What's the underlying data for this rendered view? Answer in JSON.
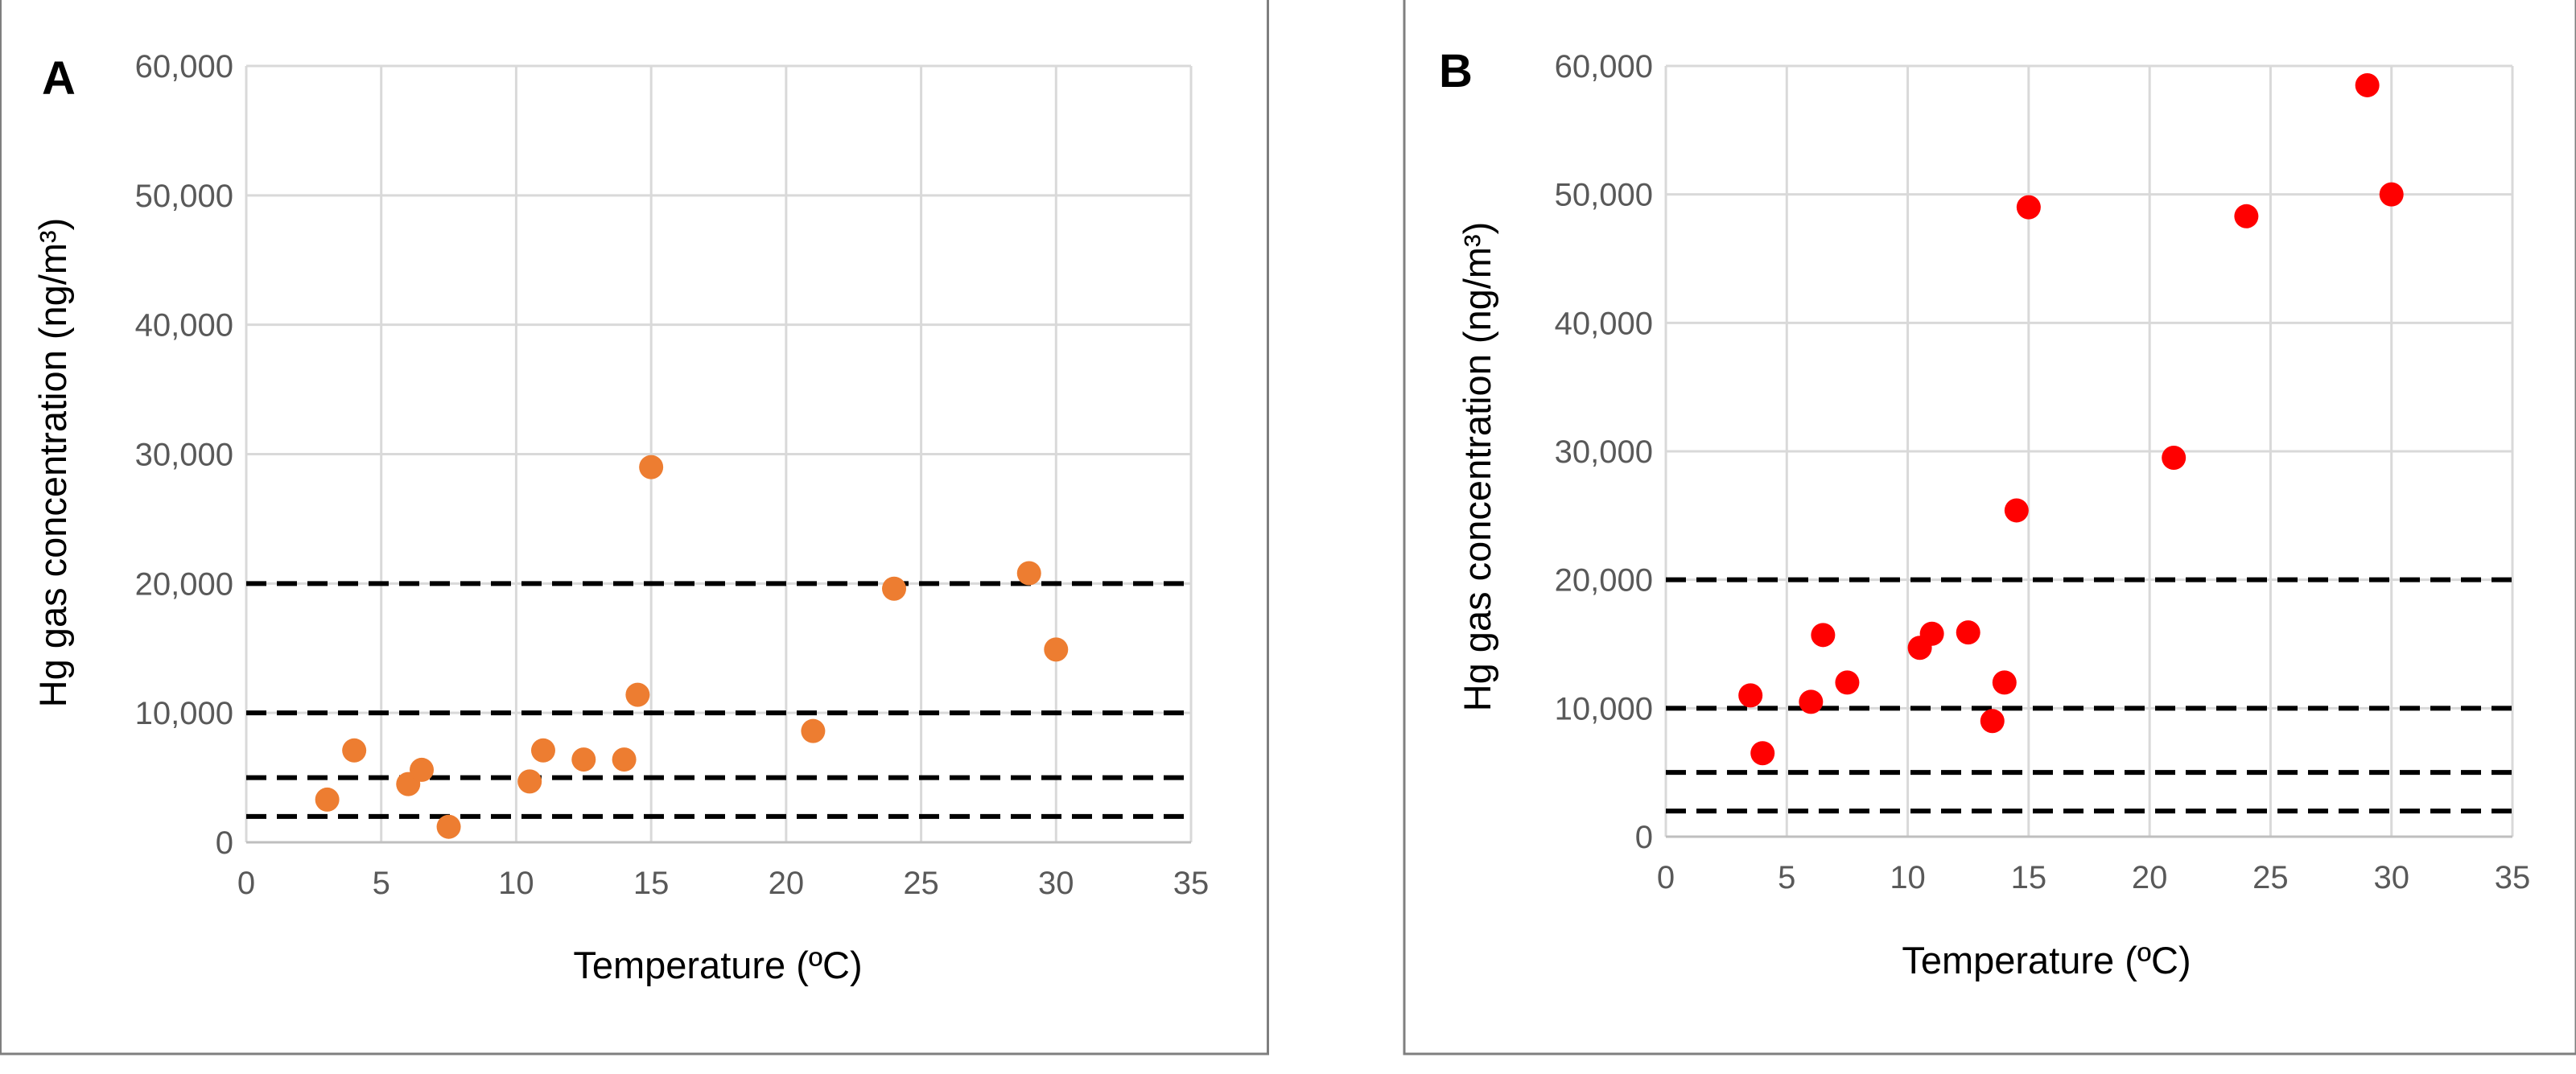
{
  "chart_data": [
    {
      "type": "scatter",
      "panel_label": "A",
      "title": "",
      "xlabel": "Temperature (ºC)",
      "ylabel": "Hg gas concentration (ng/m³)",
      "xlim": [
        0,
        35
      ],
      "ylim": [
        0,
        60000
      ],
      "x_ticks": [
        0,
        5,
        10,
        15,
        20,
        25,
        30,
        35
      ],
      "x_tick_labels": [
        "0",
        "5",
        "10",
        "15",
        "20",
        "25",
        "30",
        "35"
      ],
      "y_ticks": [
        0,
        10000,
        20000,
        30000,
        40000,
        50000,
        60000
      ],
      "y_tick_labels": [
        "0",
        "10,000",
        "20,000",
        "30,000",
        "40,000",
        "50,000",
        "60,000"
      ],
      "grid": true,
      "marker_color": "#ED7D31",
      "reference_lines": [
        2000,
        5000,
        10000,
        20000
      ],
      "series": [
        {
          "name": "A",
          "points": [
            [
              3,
              3300
            ],
            [
              4,
              7100
            ],
            [
              6,
              4500
            ],
            [
              6.5,
              5600
            ],
            [
              7.5,
              1200
            ],
            [
              10.5,
              4700
            ],
            [
              11,
              7100
            ],
            [
              12.5,
              6400
            ],
            [
              14,
              6400
            ],
            [
              14.5,
              11400
            ],
            [
              15,
              29000
            ],
            [
              21,
              8600
            ],
            [
              24,
              19600
            ],
            [
              29,
              20800
            ],
            [
              30,
              14900
            ]
          ]
        }
      ]
    },
    {
      "type": "scatter",
      "panel_label": "B",
      "title": "",
      "xlabel": "Temperature (ºC)",
      "ylabel": "Hg gas concentration (ng/m³)",
      "xlim": [
        0,
        35
      ],
      "ylim": [
        0,
        60000
      ],
      "x_ticks": [
        0,
        5,
        10,
        15,
        20,
        25,
        30,
        35
      ],
      "x_tick_labels": [
        "0",
        "5",
        "10",
        "15",
        "20",
        "25",
        "30",
        "35"
      ],
      "y_ticks": [
        0,
        10000,
        20000,
        30000,
        40000,
        50000,
        60000
      ],
      "y_tick_labels": [
        "0",
        "10,000",
        "20,000",
        "30,000",
        "40,000",
        "50,000",
        "60,000"
      ],
      "grid": true,
      "marker_color": "#FF0000",
      "reference_lines": [
        2000,
        5000,
        10000,
        20000
      ],
      "series": [
        {
          "name": "B",
          "points": [
            [
              3.5,
              11000
            ],
            [
              4,
              6500
            ],
            [
              6,
              10500
            ],
            [
              6.5,
              15700
            ],
            [
              7.5,
              12000
            ],
            [
              10.5,
              14700
            ],
            [
              11,
              15800
            ],
            [
              12.5,
              15900
            ],
            [
              13.5,
              9000
            ],
            [
              14,
              12000
            ],
            [
              14.5,
              25400
            ],
            [
              15,
              49000
            ],
            [
              21,
              29500
            ],
            [
              24,
              48300
            ],
            [
              29,
              58500
            ],
            [
              30,
              50000
            ]
          ]
        }
      ]
    }
  ]
}
